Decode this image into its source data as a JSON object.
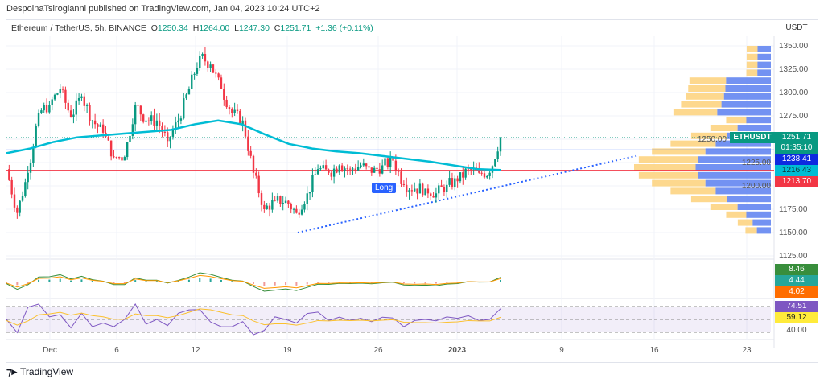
{
  "header": {
    "published": "DespoinaTsirogianni published on TradingView.com, Jan 04, 2023 10:24 UTC+2"
  },
  "legend": {
    "symbol": "Ethereum / TetherUS, 5h, BINANCE",
    "open_label": "O",
    "open": "1250.34",
    "high_label": "H",
    "high": "1264.00",
    "low_label": "L",
    "low": "1247.30",
    "close_label": "C",
    "close": "1251.71",
    "change": "+1.36 (+0.11%)"
  },
  "colors": {
    "up": "#089981",
    "down": "#f23645",
    "ma": "#00bcd4",
    "support": "#f23645",
    "resistance": "#2962ff",
    "trend": "#2962ff",
    "vp_up": "#fdd17a",
    "vp_down": "#5b7ff0"
  },
  "price_labels": {
    "currency": "USDT",
    "symbol_tag": "ETHUSDT",
    "last": "1251.71",
    "countdown": "01:35:10",
    "blue_line": "1238.41",
    "ma_value": "1216.43",
    "red_line": "1213.70",
    "macd": "8.46",
    "signal": "4.44",
    "hist": "4.02",
    "rsi": "74.51",
    "rsi_ma": "59.12",
    "rsi_level": "40.00"
  },
  "annotations": {
    "long_tag": "Long"
  },
  "footer": {
    "brand": "TradingView"
  },
  "chart_data": {
    "type": "candlestick",
    "title": "",
    "y_ticks": [
      1350,
      1325,
      1300,
      1275,
      1250,
      1225,
      1200,
      1175,
      1150,
      1125
    ],
    "y_tick_labels": [
      "1350.00",
      "1325.00",
      "1300.00",
      "1275.00",
      "1250.00",
      "1225.00",
      "1200.00",
      "1175.00",
      "1150.00",
      "1125.00"
    ],
    "ylim": [
      1115,
      1362
    ],
    "x_ticks": [
      "Dec",
      "6",
      "12",
      "19",
      "26",
      "2023",
      "9",
      "16",
      "23"
    ],
    "closes": [
      1218,
      1171,
      1214,
      1278,
      1287,
      1304,
      1274,
      1296,
      1270,
      1257,
      1231,
      1231,
      1287,
      1270,
      1270,
      1248,
      1270,
      1304,
      1339,
      1330,
      1304,
      1278,
      1270,
      1214,
      1175,
      1184,
      1184,
      1171,
      1192,
      1218,
      1214,
      1222,
      1218,
      1222,
      1214,
      1222,
      1227,
      1201,
      1197,
      1197,
      1192,
      1201,
      1205,
      1218,
      1214,
      1214,
      1252
    ],
    "ma_series": [
      1235,
      1240,
      1247,
      1252,
      1254,
      1256,
      1258,
      1260,
      1266,
      1270,
      1266,
      1255,
      1245,
      1240,
      1237,
      1235,
      1232,
      1229,
      1226,
      1222,
      1218,
      1217
    ],
    "horizontal_lines": [
      1238.41,
      1216.43
    ],
    "trendline": {
      "from": [
        "Dec 20",
        1150
      ],
      "to": [
        "Jan 15",
        1232
      ]
    },
    "last_price": 1251.71
  }
}
